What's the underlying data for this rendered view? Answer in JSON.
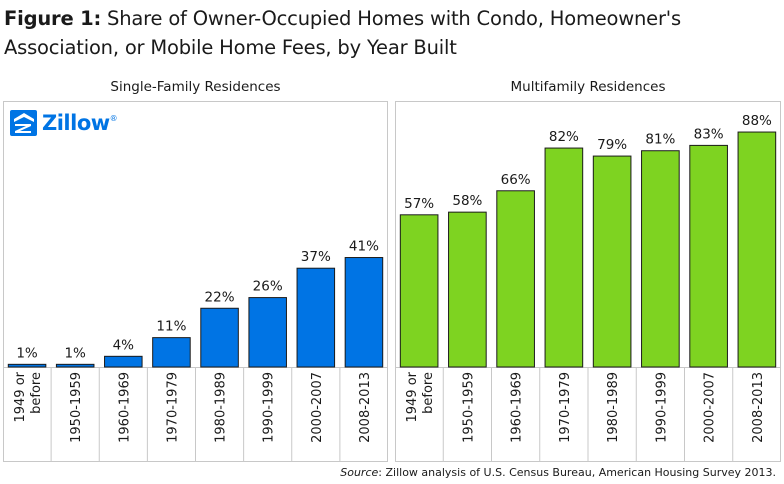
{
  "title": {
    "prefix": "Figure 1:",
    "text": " Share of Owner-Occupied Homes with Condo, Homeowner's Association, or Mobile Home Fees, by Year Built"
  },
  "logo": {
    "text": "Zillow",
    "reg": "®"
  },
  "source": {
    "label": "Source",
    "text": ": Zillow analysis of U.S. Census Bureau, American Housing Survey 2013."
  },
  "colors": {
    "single": "#0074e4",
    "multi": "#7ed321",
    "frame": "#c8c8c8"
  },
  "chart_data": [
    {
      "type": "bar",
      "title": "Single-Family Residences",
      "categories": [
        "1949 or before",
        "1950-1959",
        "1960-1969",
        "1970-1979",
        "1980-1989",
        "1990-1999",
        "2000-2007",
        "2008-2013"
      ],
      "values": [
        1,
        1,
        4,
        11,
        22,
        26,
        37,
        41
      ],
      "value_labels": [
        "1%",
        "1%",
        "4%",
        "11%",
        "22%",
        "26%",
        "37%",
        "41%"
      ],
      "ylim": [
        0,
        100
      ],
      "grid": false
    },
    {
      "type": "bar",
      "title": "Multifamily Residences",
      "categories": [
        "1949 or before",
        "1950-1959",
        "1960-1969",
        "1970-1979",
        "1980-1989",
        "1990-1999",
        "2000-2007",
        "2008-2013"
      ],
      "values": [
        57,
        58,
        66,
        82,
        79,
        81,
        83,
        88
      ],
      "value_labels": [
        "57%",
        "58%",
        "66%",
        "82%",
        "79%",
        "81%",
        "83%",
        "88%"
      ],
      "ylim": [
        0,
        100
      ],
      "grid": false
    }
  ]
}
